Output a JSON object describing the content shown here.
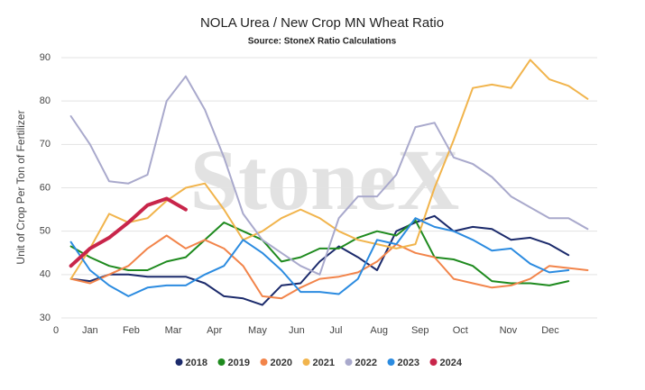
{
  "chart_data": {
    "type": "line",
    "title": "NOLA Urea / New Crop MN Wheat Ratio",
    "subtitle": "Source: StoneX Ratio Calculations",
    "watermark": "StoneX",
    "y_label": "Unit of Crop Per Ton of Fertilizer",
    "x": [
      1,
      3,
      5,
      7,
      9,
      11,
      13,
      15,
      17,
      19,
      21,
      23,
      25,
      27,
      29,
      31,
      33,
      35,
      37,
      39,
      41,
      43,
      45,
      47,
      49,
      51,
      53,
      55
    ],
    "xlim": [
      0,
      56
    ],
    "xticks": [
      0,
      {
        "value": 3,
        "label": "Jan"
      },
      {
        "value": 7.3,
        "label": "Feb"
      },
      {
        "value": 11.7,
        "label": "Mar"
      },
      {
        "value": 16,
        "label": "Apr"
      },
      {
        "value": 20.5,
        "label": "May"
      },
      {
        "value": 24.6,
        "label": "Jun"
      },
      {
        "value": 28.7,
        "label": "Jul"
      },
      {
        "value": 33.2,
        "label": "Aug"
      },
      {
        "value": 37.5,
        "label": "Sep"
      },
      {
        "value": 41.7,
        "label": "Oct"
      },
      {
        "value": 46.7,
        "label": "Nov"
      },
      {
        "value": 51.1,
        "label": "Dec"
      }
    ],
    "ylim": [
      30,
      90
    ],
    "yticks": [
      30,
      40,
      50,
      60,
      70,
      80,
      90
    ],
    "grid": true,
    "legend": "bottom",
    "series": [
      {
        "name": "2018",
        "color": "#1b2a6b",
        "width": 2,
        "values": [
          39,
          38.5,
          40,
          40,
          39.5,
          39.5,
          39.5,
          38,
          35,
          34.5,
          33,
          37.5,
          38,
          43,
          46.5,
          44,
          41,
          50,
          52,
          53.5,
          50,
          51,
          50.5,
          48,
          48.5,
          47,
          44.5,
          null
        ]
      },
      {
        "name": "2019",
        "color": "#1e8a1e",
        "width": 2,
        "values": [
          46.5,
          44,
          42,
          41,
          41,
          43,
          44,
          48,
          52,
          50,
          48,
          43,
          44,
          46,
          46,
          48.5,
          50,
          49,
          52.5,
          44,
          43.5,
          42,
          38.5,
          38,
          38,
          37.5,
          38.5,
          null
        ]
      },
      {
        "name": "2020",
        "color": "#f2844a",
        "width": 2,
        "values": [
          39,
          38,
          40,
          42,
          46,
          49,
          46,
          48,
          46,
          42,
          35,
          34.5,
          37,
          39,
          39.5,
          40.5,
          43,
          47,
          45,
          44,
          39,
          38,
          37,
          37.5,
          39,
          42,
          41.5,
          41
        ]
      },
      {
        "name": "2021",
        "color": "#f1b44c",
        "width": 2,
        "values": [
          39,
          46,
          54,
          52,
          53,
          57,
          60,
          61,
          55,
          48,
          50,
          53,
          55,
          53,
          50,
          48,
          47,
          46,
          47,
          60,
          71,
          83,
          83.8,
          83,
          89.5,
          85,
          83.5,
          80.5
        ]
      },
      {
        "name": "2022",
        "color": "#a9a9cc",
        "width": 2,
        "values": [
          76.5,
          70,
          61.5,
          61,
          63,
          80,
          85.7,
          78,
          67,
          54,
          48,
          45,
          42,
          40,
          53,
          58,
          58,
          63,
          74,
          75,
          67,
          65.5,
          62.5,
          58,
          55.5,
          53,
          53,
          50.5
        ]
      },
      {
        "name": "2023",
        "color": "#2b8be0",
        "width": 2,
        "values": [
          47.5,
          41,
          37.5,
          35,
          37,
          37.5,
          37.5,
          40,
          42,
          48,
          45,
          41,
          36,
          36,
          35.5,
          39,
          48,
          47,
          53,
          51,
          50,
          48,
          45.5,
          46,
          42.5,
          40.5,
          41,
          null
        ]
      },
      {
        "name": "2024",
        "color": "#c8254a",
        "width": 4,
        "values": [
          42,
          46,
          48.5,
          52,
          56,
          57.5,
          55,
          null,
          null,
          null,
          null,
          null,
          null,
          null,
          null,
          null,
          null,
          null,
          null,
          null,
          null,
          null,
          null,
          null,
          null,
          null,
          null,
          null
        ]
      }
    ]
  }
}
